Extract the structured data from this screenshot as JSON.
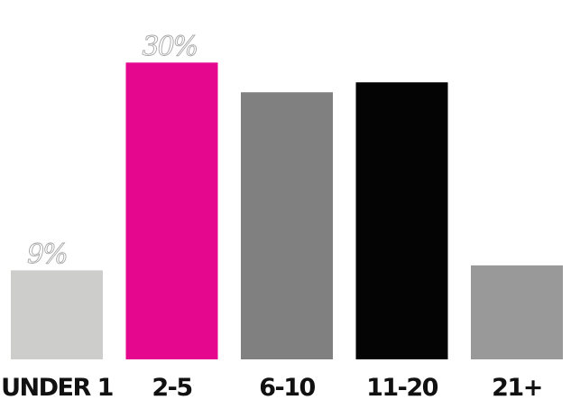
{
  "chart_data": {
    "type": "bar",
    "categories": [
      "UNDER 1",
      "2-5",
      "6-10",
      "11-20",
      "21+"
    ],
    "values": [
      9,
      30,
      27,
      28,
      9.5
    ],
    "data_labels": [
      "9%",
      "30%",
      "",
      "",
      ""
    ],
    "colors": [
      "#cdcdcc",
      "#e5088f",
      "#7f807f",
      "#040404",
      "#989998"
    ],
    "title": "",
    "xlabel": "",
    "ylabel": "",
    "ylim": [
      0,
      34.5
    ],
    "grid": false,
    "legend": "none"
  }
}
